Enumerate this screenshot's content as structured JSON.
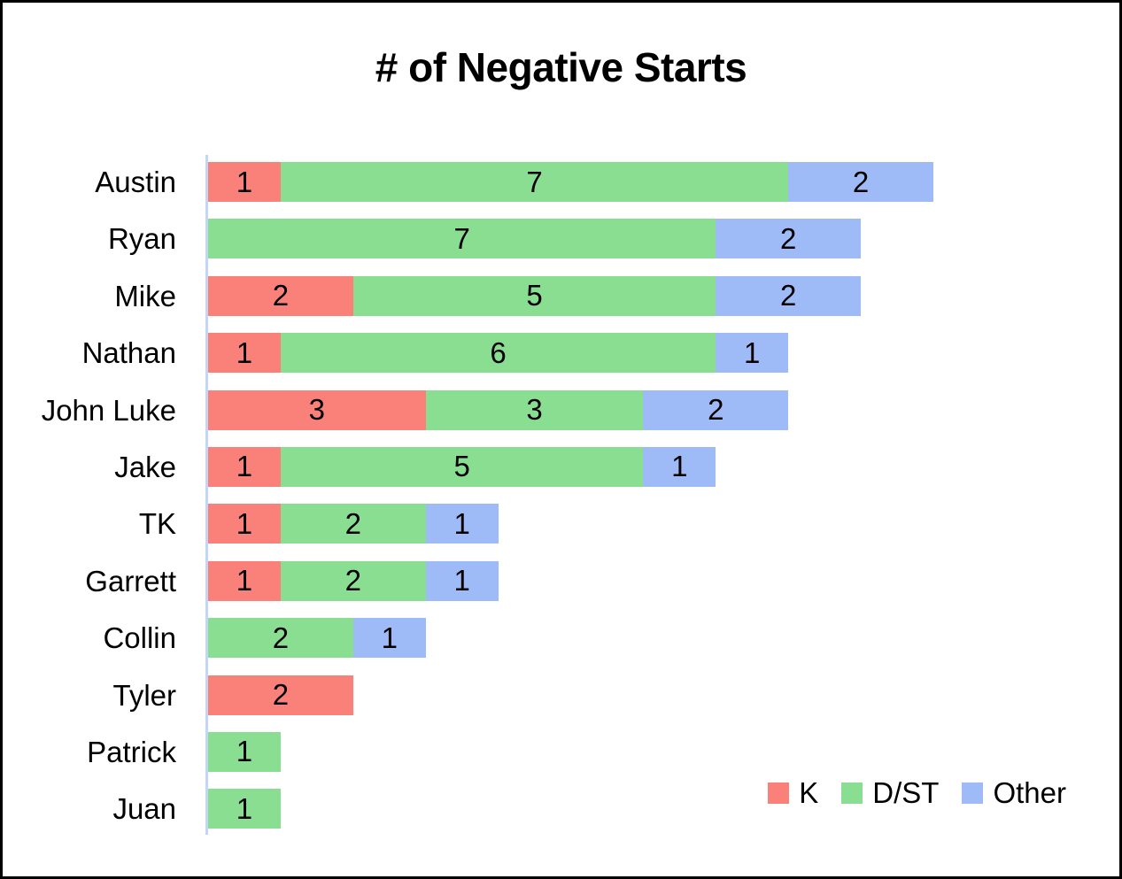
{
  "title": "# of Negative Starts",
  "colors": {
    "k": "#FA817A",
    "dst": "#89DE91",
    "other": "#9FBBF7",
    "axis_line": "#C3D6F2",
    "text": "#000000",
    "background": "#FFFFFF",
    "border": "#000000"
  },
  "chart_data": {
    "type": "bar",
    "orientation": "horizontal",
    "stacked": true,
    "title": "# of Negative Starts",
    "xlabel": "",
    "ylabel": "",
    "xlim": [
      0,
      10
    ],
    "grid": false,
    "value_labels": true,
    "legend_position": "bottom-right",
    "categories": [
      "Austin",
      "Ryan",
      "Mike",
      "Nathan",
      "John Luke",
      "Jake",
      "TK",
      "Garrett",
      "Collin",
      "Tyler",
      "Patrick",
      "Juan"
    ],
    "series": [
      {
        "name": "K",
        "key": "k",
        "color": "#FA817A",
        "values": [
          1,
          0,
          2,
          1,
          3,
          1,
          1,
          1,
          0,
          2,
          0,
          0
        ]
      },
      {
        "name": "D/ST",
        "key": "dst",
        "color": "#89DE91",
        "values": [
          7,
          7,
          5,
          6,
          3,
          5,
          2,
          2,
          2,
          0,
          1,
          1
        ]
      },
      {
        "name": "Other",
        "key": "other",
        "color": "#9FBBF7",
        "values": [
          2,
          2,
          2,
          1,
          2,
          1,
          1,
          1,
          1,
          0,
          0,
          0
        ]
      }
    ],
    "totals": [
      10,
      9,
      9,
      8,
      8,
      7,
      4,
      4,
      3,
      2,
      1,
      1
    ]
  },
  "legend": {
    "items": [
      "K",
      "D/ST",
      "Other"
    ]
  }
}
